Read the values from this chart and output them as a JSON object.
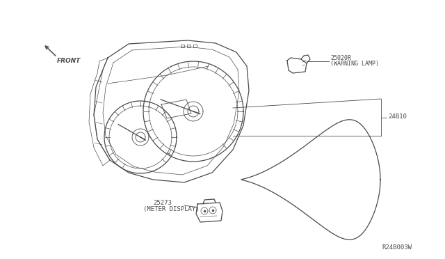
{
  "background_color": "#ffffff",
  "line_color": "#4a4a4a",
  "text_color": "#4a4a4a",
  "diagram_ref": "R24B003W",
  "parts": [
    {
      "id": "25020R",
      "label": "(WARNING LAMP)"
    },
    {
      "id": "24B10",
      "label": ""
    },
    {
      "id": "25273",
      "label": "(METER DISPLAY)"
    }
  ],
  "front_label": "FRONT"
}
